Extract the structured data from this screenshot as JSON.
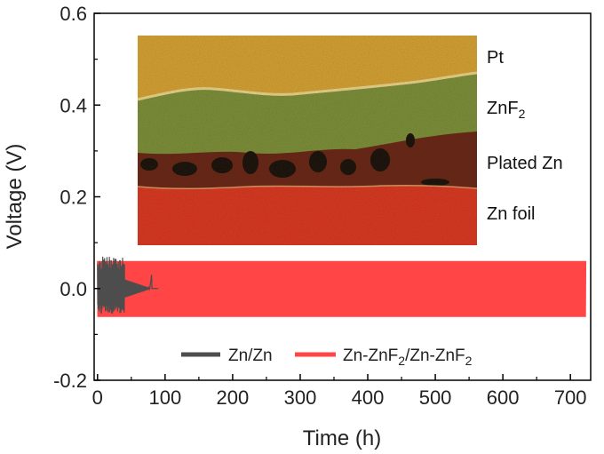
{
  "chart_data": {
    "type": "line",
    "title": "",
    "xlabel": "Time (h)",
    "ylabel": "Voltage (V)",
    "xlim": [
      -5,
      730
    ],
    "ylim": [
      -0.2,
      0.6
    ],
    "xticks": [
      0,
      100,
      200,
      300,
      400,
      500,
      600,
      700
    ],
    "yticks": [
      -0.2,
      0.0,
      0.2,
      0.4,
      0.6
    ],
    "xtick_labels": [
      "0",
      "100",
      "200",
      "300",
      "400",
      "500",
      "600",
      "700"
    ],
    "ytick_labels": [
      "-0.2",
      "0.0",
      "0.2",
      "0.4",
      "0.6"
    ],
    "series": [
      {
        "name": "Zn/Zn",
        "legend_parts": {
          "text": "Zn/Zn"
        },
        "color": "#4d4d4d",
        "kind": "voltage-cycling",
        "t_start": 0,
        "t_end": 90,
        "dense_end": 40,
        "upper_envelope": 0.07,
        "lower_envelope": -0.055,
        "spike_t": 80,
        "spike_v": 0.03,
        "tail_v": 0.0
      },
      {
        "name": "Zn-ZnF2/Zn-ZnF2",
        "legend_parts": {
          "a": "Zn-ZnF",
          "a_sub": "2",
          "b": "/Zn-ZnF",
          "b_sub": "2"
        },
        "color": "#ff4545",
        "kind": "voltage-cycling",
        "t_start": 0,
        "t_end": 723,
        "upper_envelope": 0.06,
        "lower_envelope": -0.062
      }
    ],
    "legend_position": "lower-center",
    "inset": {
      "kind": "cross-section-image",
      "layers": [
        {
          "label": "Pt",
          "sub": ""
        },
        {
          "label": "ZnF",
          "sub": "2"
        },
        {
          "label": "Plated Zn",
          "sub": ""
        },
        {
          "label": "Zn foil",
          "sub": ""
        }
      ]
    }
  }
}
